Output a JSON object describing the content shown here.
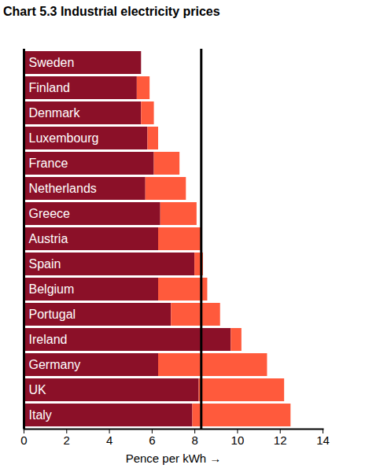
{
  "chart_data": {
    "type": "bar",
    "title": "Chart 5.3 Industrial electricity prices",
    "orientation": "horizontal",
    "stacked": true,
    "categories": [
      "Sweden",
      "Finland",
      "Denmark",
      "Luxembourg",
      "France",
      "Netherlands",
      "Greece",
      "Austria",
      "Spain",
      "Belgium",
      "Portugal",
      "Ireland",
      "Germany",
      "UK",
      "Italy"
    ],
    "series": [
      {
        "color": "#8b1028",
        "values": [
          5.5,
          5.3,
          5.5,
          5.8,
          6.1,
          5.7,
          6.4,
          6.3,
          8.0,
          6.3,
          6.9,
          9.7,
          6.3,
          8.2,
          7.9
        ]
      },
      {
        "color": "#ff5a3c",
        "values": [
          0,
          0.6,
          0.6,
          0.5,
          1.2,
          1.9,
          1.7,
          2.0,
          0.4,
          2.3,
          2.3,
          0.5,
          5.1,
          4.0,
          4.6
        ]
      }
    ],
    "xlabel": "Pence per kWh",
    "xlim": [
      0,
      14
    ],
    "xticks": [
      0,
      2,
      4,
      6,
      8,
      10,
      12,
      14
    ],
    "reference_line": 8.3,
    "grid": false,
    "tick_labels": "x"
  }
}
